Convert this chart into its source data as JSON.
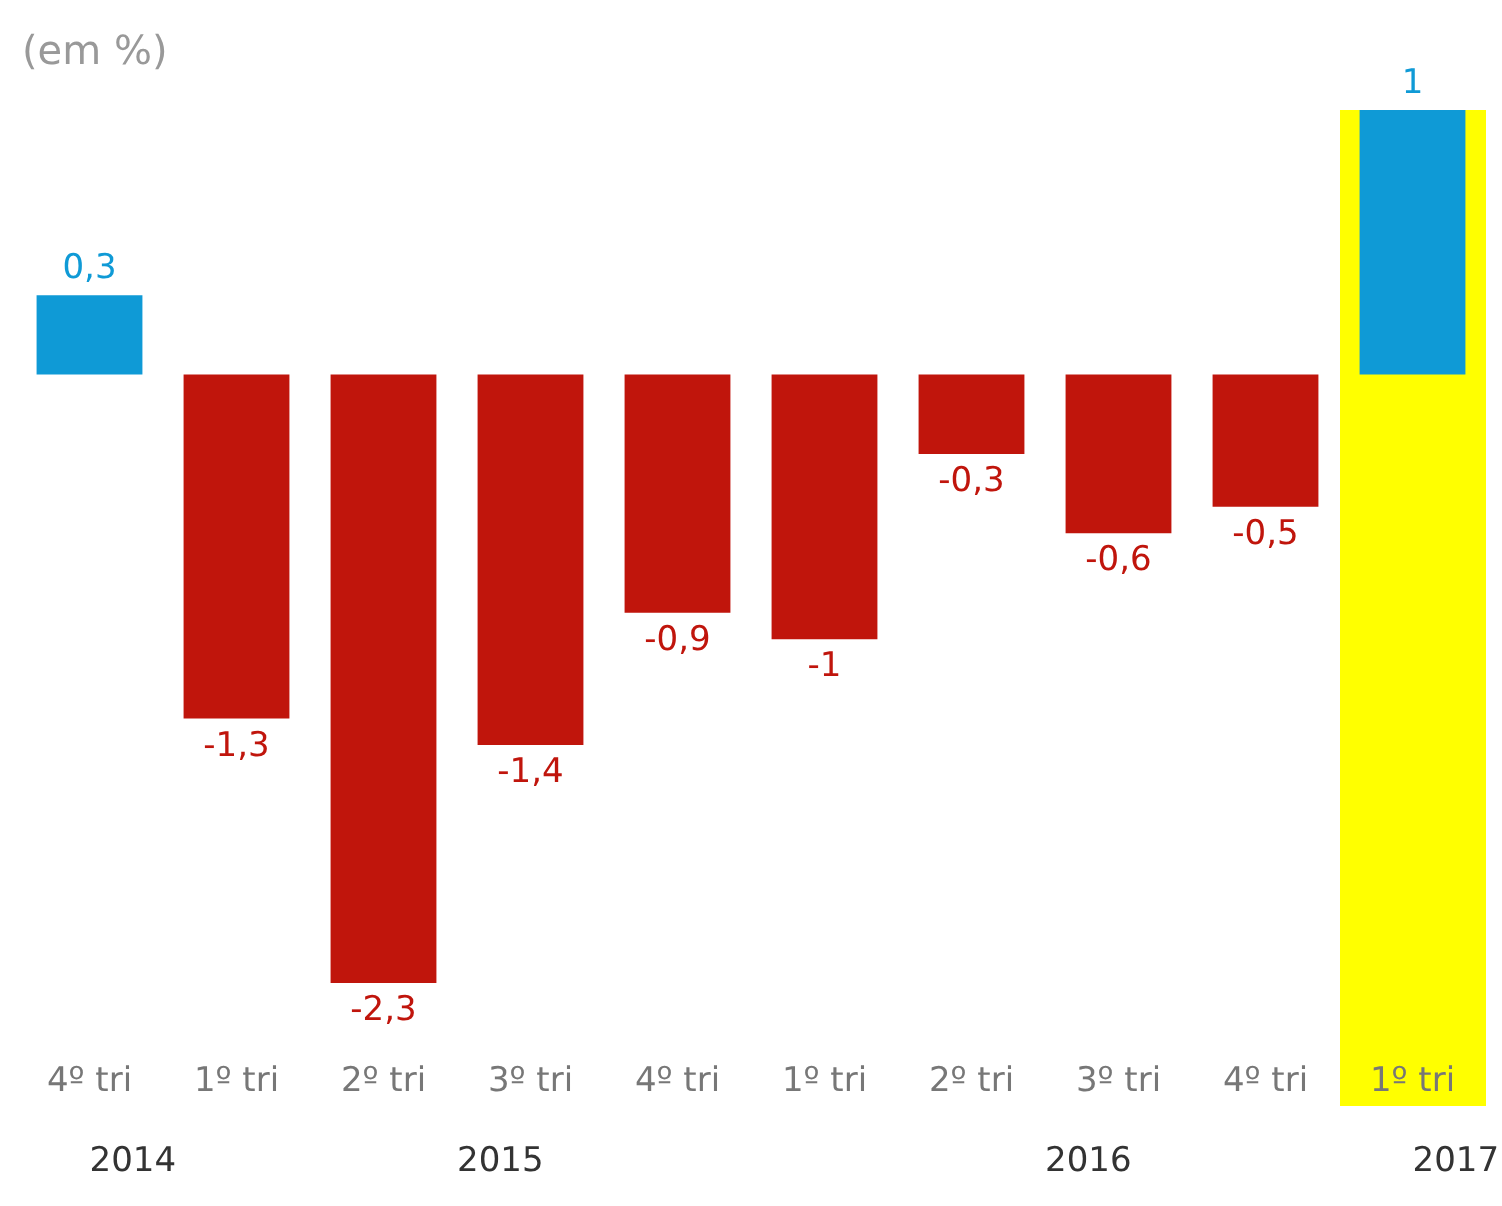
{
  "chart_data": {
    "type": "bar",
    "title": "(em %)",
    "categories": [
      "4º tri",
      "1º tri",
      "2º tri",
      "3º tri",
      "4º tri",
      "1º tri",
      "2º tri",
      "3º tri",
      "4º tri",
      "1º tri"
    ],
    "values": [
      0.3,
      -1.3,
      -2.3,
      -1.4,
      -0.9,
      -1,
      -0.3,
      -0.6,
      -0.5,
      1
    ],
    "colors": [
      "#0f9ad6",
      "#c0150c",
      "#c0150c",
      "#c0150c",
      "#c0150c",
      "#c0150c",
      "#c0150c",
      "#c0150c",
      "#c0150c",
      "#0f9ad6"
    ],
    "value_labels": [
      "0,3",
      "-1,3",
      "-2,3",
      "-1,4",
      "-0,9",
      "-1",
      "-0,3",
      "-0,6",
      "-0,5",
      "1"
    ],
    "annotations": [
      "2014",
      "2015",
      "2016",
      "2017"
    ],
    "grid": false
  }
}
